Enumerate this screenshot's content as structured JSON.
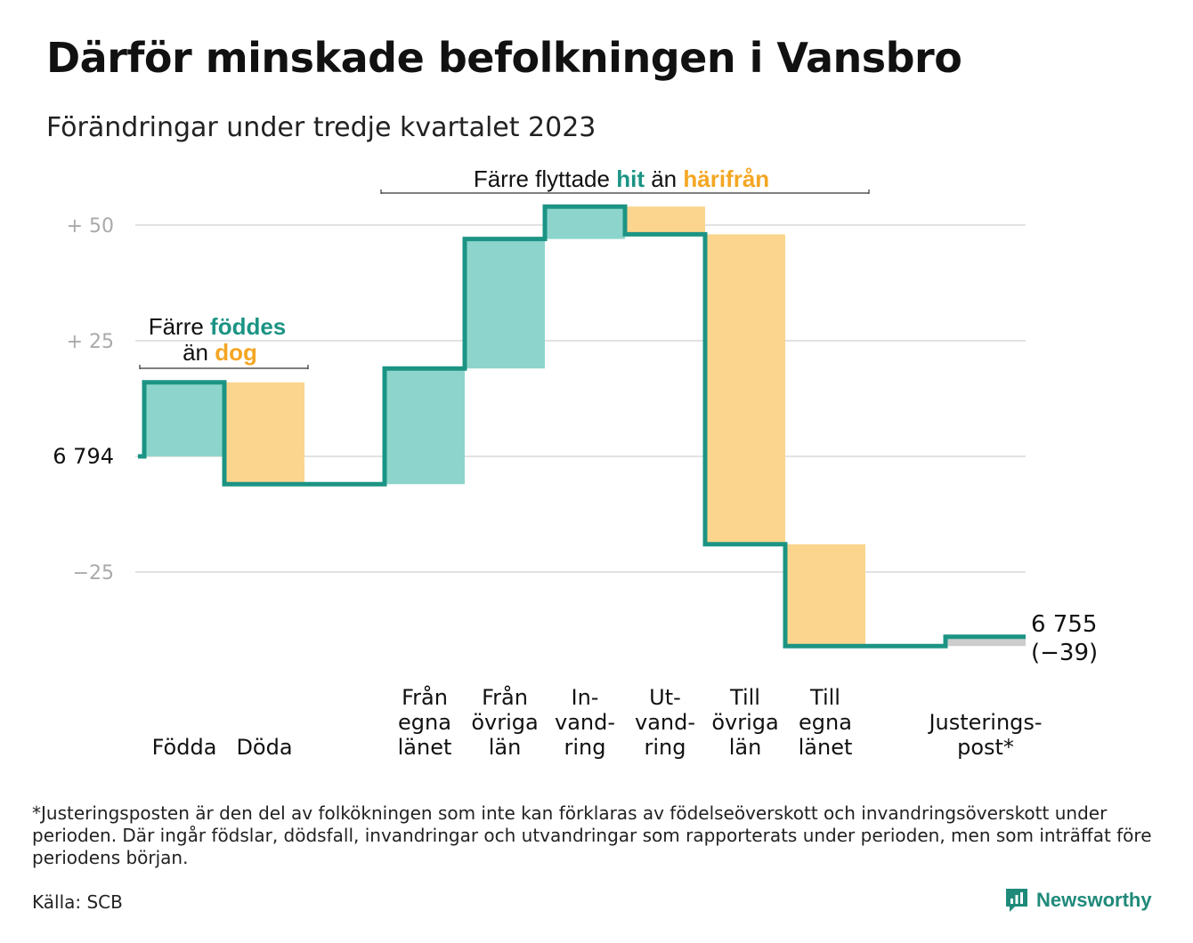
{
  "title": "Därför minskade befolkningen i Vansbro",
  "subtitle": "Förändringar under tredje kvartalet 2023",
  "chart_data": {
    "type": "waterfall",
    "baseline": 6794,
    "baseline_label": "6  794",
    "end_value": 6755,
    "end_label": "6 755",
    "end_change_label": "(−39)",
    "y_ticks": [
      {
        "value": 50,
        "label": "+  50"
      },
      {
        "value": 25,
        "label": "+  25"
      },
      {
        "value": 0,
        "label": "6  794"
      },
      {
        "value": -25,
        "label": "−25"
      }
    ],
    "ylim": [
      -42,
      57
    ],
    "grid": true,
    "steps": [
      {
        "lines": [
          "Födda"
        ],
        "change": 16,
        "kind": "in",
        "slot": 0
      },
      {
        "lines": [
          "Döda"
        ],
        "change": -22,
        "kind": "out",
        "slot": 1
      },
      {
        "lines": [
          "Från",
          "egna",
          "länet"
        ],
        "change": 25,
        "kind": "in",
        "slot": 3
      },
      {
        "lines": [
          "Från",
          "övriga",
          "län"
        ],
        "change": 28,
        "kind": "in",
        "slot": 4
      },
      {
        "lines": [
          "In-",
          "vand-",
          "ring"
        ],
        "change": 7,
        "kind": "in",
        "slot": 5
      },
      {
        "lines": [
          "Ut-",
          "vand-",
          "ring"
        ],
        "change": -6,
        "kind": "out",
        "slot": 6
      },
      {
        "lines": [
          "Till",
          "övriga",
          "län"
        ],
        "change": -67,
        "kind": "out",
        "slot": 7
      },
      {
        "lines": [
          "Till",
          "egna",
          "länet"
        ],
        "change": -22,
        "kind": "out",
        "slot": 8
      },
      {
        "lines": [
          "Justerings-",
          "post*"
        ],
        "change": 2,
        "kind": "adjust",
        "slot": 10
      }
    ],
    "annotations": [
      {
        "text1": "Färre ",
        "hl1": "föddes",
        "text2": "än ",
        "hl2": "dog"
      },
      {
        "text1": "Färre flyttade ",
        "hl1": "hit",
        "text2": " än ",
        "hl2": "härifrån"
      }
    ],
    "colors": {
      "in_fill": "#8dd5cc",
      "out_fill": "#fbd58d",
      "adjust_fill": "#cccccc",
      "line": "#1c9484",
      "highlight_in": "#1c9484",
      "highlight_out": "#f4a623",
      "grid": "#e2e2e2",
      "tick": "#aaaaaa"
    }
  },
  "footnote": "*Justeringsposten är den del av folkökningen som inte kan förklaras av födelseöverskott och invandringsöverskott under perioden. Där ingår födslar, dödsfall, invandringar och utvandringar som rapporterats under perioden, men som inträffat före periodens början.",
  "source": "Källa: SCB",
  "brand": {
    "name": "Newsworthy",
    "icon": "newsworthy-logo-icon"
  }
}
